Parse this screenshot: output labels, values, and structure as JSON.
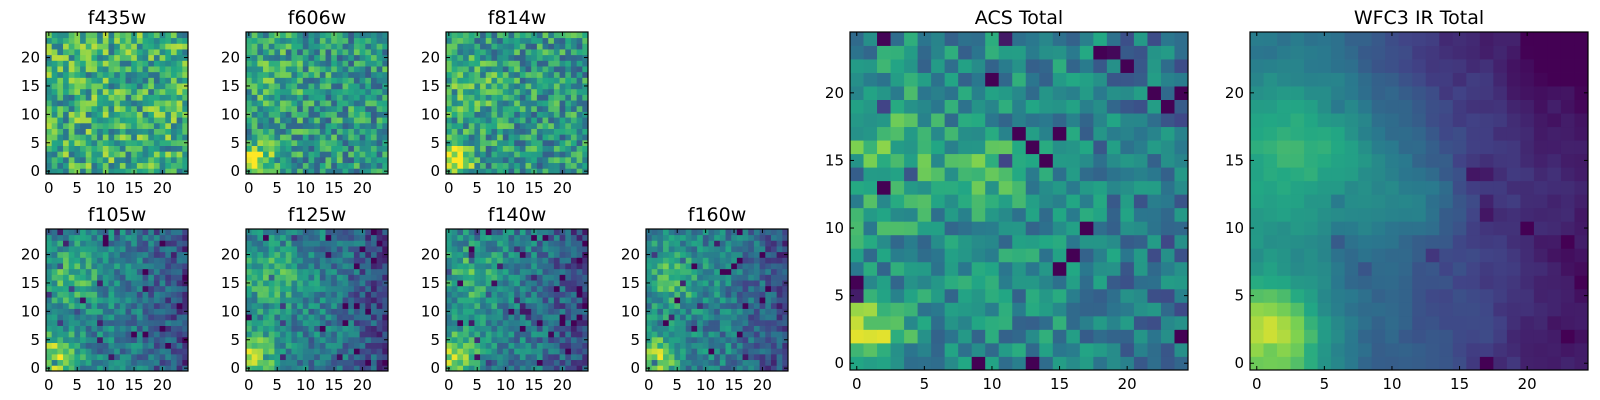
{
  "figure": {
    "colormap": "viridis",
    "colormap_stops": [
      "#440154",
      "#414487",
      "#2a788e",
      "#22a884",
      "#7ad151",
      "#fde725"
    ],
    "background": "#ffffff"
  },
  "chart_data": [
    {
      "type": "heatmap",
      "title": "f435w",
      "grid_size": 25,
      "xticks": [
        "0",
        "5",
        "10",
        "15",
        "20"
      ],
      "yticks": [
        "0",
        "5",
        "10",
        "15",
        "20"
      ],
      "pattern": "noise",
      "seed": 11
    },
    {
      "type": "heatmap",
      "title": "f606w",
      "grid_size": 25,
      "xticks": [
        "0",
        "5",
        "10",
        "15",
        "20"
      ],
      "yticks": [
        "0",
        "5",
        "10",
        "15",
        "20"
      ],
      "pattern": "blob_lowleft",
      "seed": 23
    },
    {
      "type": "heatmap",
      "title": "f814w",
      "grid_size": 25,
      "xticks": [
        "0",
        "5",
        "10",
        "15",
        "20"
      ],
      "yticks": [
        "0",
        "5",
        "10",
        "15",
        "20"
      ],
      "pattern": "blob_lowleft",
      "seed": 37
    },
    {
      "type": "heatmap",
      "title": "f105w",
      "grid_size": 25,
      "xticks": [
        "0",
        "5",
        "10",
        "15",
        "20"
      ],
      "yticks": [
        "0",
        "5",
        "10",
        "15",
        "20"
      ],
      "pattern": "diffuse",
      "seed": 41
    },
    {
      "type": "heatmap",
      "title": "f125w",
      "grid_size": 25,
      "xticks": [
        "0",
        "5",
        "10",
        "15",
        "20"
      ],
      "yticks": [
        "0",
        "5",
        "10",
        "15",
        "20"
      ],
      "pattern": "diffuse",
      "seed": 53
    },
    {
      "type": "heatmap",
      "title": "f140w",
      "grid_size": 25,
      "xticks": [
        "0",
        "5",
        "10",
        "15",
        "20"
      ],
      "yticks": [
        "0",
        "5",
        "10",
        "15",
        "20"
      ],
      "pattern": "diffuse",
      "seed": 67
    },
    {
      "type": "heatmap",
      "title": "f160w",
      "grid_size": 25,
      "xticks": [
        "0",
        "5",
        "10",
        "15",
        "20"
      ],
      "yticks": [
        "0",
        "5",
        "10",
        "15",
        "20"
      ],
      "pattern": "diffuse",
      "seed": 79
    },
    {
      "type": "heatmap",
      "title": "ACS Total",
      "grid_size": 25,
      "xticks": [
        "0",
        "5",
        "10",
        "15",
        "20"
      ],
      "yticks": [
        "0",
        "5",
        "10",
        "15",
        "20"
      ],
      "pattern": "acs_total",
      "seed": 97
    },
    {
      "type": "heatmap",
      "title": "WFC3 IR Total",
      "grid_size": 25,
      "xticks": [
        "0",
        "5",
        "10",
        "15",
        "20"
      ],
      "yticks": [
        "0",
        "5",
        "10",
        "15",
        "20"
      ],
      "pattern": "ir_total",
      "seed": 131
    }
  ]
}
